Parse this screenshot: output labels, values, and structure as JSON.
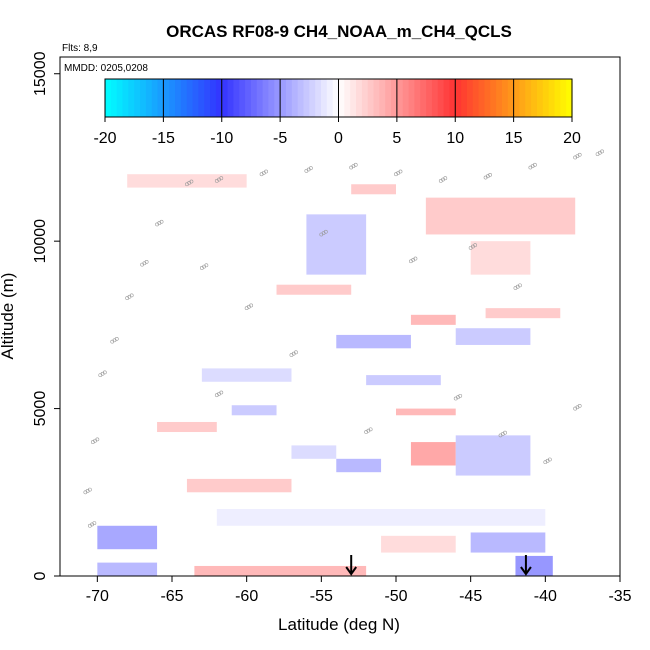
{
  "chart_data": {
    "type": "heatmap",
    "title": "ORCAS RF08-9 CH4_NOAA_m_CH4_QCLS",
    "notes": {
      "flights": "Flts: 8,9",
      "dates": "MMDD: 0205,0208"
    },
    "xlabel": "Latitude (deg N)",
    "ylabel": "Altitude (m)",
    "xlim": [
      -72.5,
      -35
    ],
    "ylim": [
      0,
      15500
    ],
    "x_ticks": [
      -70,
      -65,
      -60,
      -55,
      -50,
      -45,
      -40,
      -35
    ],
    "y_ticks": [
      0,
      5000,
      10000,
      15000
    ],
    "colorbar": {
      "range": [
        -20,
        20
      ],
      "ticks": [
        -20,
        -15,
        -10,
        -5,
        0,
        5,
        10,
        15,
        20
      ],
      "colors": [
        "#00ffff",
        "#3333ff",
        "#ffffff",
        "#ff3333",
        "#ffff00"
      ]
    },
    "arrows_latitude": [
      -53,
      -41.3
    ],
    "grid": false,
    "bands": [
      {
        "lat": [
          -68,
          -60
        ],
        "alt": [
          11600,
          12000
        ],
        "v": 2
      },
      {
        "lat": [
          -53,
          -50
        ],
        "alt": [
          11400,
          11700
        ],
        "v": 3
      },
      {
        "lat": [
          -48,
          -38
        ],
        "alt": [
          10200,
          11300
        ],
        "v": 3
      },
      {
        "lat": [
          -45,
          -41
        ],
        "alt": [
          9000,
          10000
        ],
        "v": 2
      },
      {
        "lat": [
          -58,
          -53
        ],
        "alt": [
          8400,
          8700
        ],
        "v": 3
      },
      {
        "lat": [
          -56,
          -52
        ],
        "alt": [
          9000,
          10800
        ],
        "v": -3
      },
      {
        "lat": [
          -49,
          -46
        ],
        "alt": [
          7500,
          7800
        ],
        "v": 4
      },
      {
        "lat": [
          -44,
          -39
        ],
        "alt": [
          7700,
          8000
        ],
        "v": 3
      },
      {
        "lat": [
          -54,
          -49
        ],
        "alt": [
          6800,
          7200
        ],
        "v": -4
      },
      {
        "lat": [
          -46,
          -41
        ],
        "alt": [
          6900,
          7400
        ],
        "v": -3
      },
      {
        "lat": [
          -63,
          -57
        ],
        "alt": [
          5800,
          6200
        ],
        "v": -2
      },
      {
        "lat": [
          -52,
          -47
        ],
        "alt": [
          5700,
          6000
        ],
        "v": -3
      },
      {
        "lat": [
          -50,
          -46
        ],
        "alt": [
          4800,
          5000
        ],
        "v": 4
      },
      {
        "lat": [
          -61,
          -58
        ],
        "alt": [
          4800,
          5100
        ],
        "v": -3
      },
      {
        "lat": [
          -66,
          -62
        ],
        "alt": [
          4300,
          4600
        ],
        "v": 3
      },
      {
        "lat": [
          -57,
          -54
        ],
        "alt": [
          3500,
          3900
        ],
        "v": -2
      },
      {
        "lat": [
          -49,
          -46
        ],
        "alt": [
          3300,
          4000
        ],
        "v": 5
      },
      {
        "lat": [
          -54,
          -51
        ],
        "alt": [
          3100,
          3500
        ],
        "v": -4
      },
      {
        "lat": [
          -64,
          -57
        ],
        "alt": [
          2500,
          2900
        ],
        "v": 3
      },
      {
        "lat": [
          -46,
          -41
        ],
        "alt": [
          3000,
          4200
        ],
        "v": -3
      },
      {
        "lat": [
          -62,
          -40
        ],
        "alt": [
          1500,
          2000
        ],
        "v": -1
      },
      {
        "lat": [
          -70,
          -66
        ],
        "alt": [
          800,
          1500
        ],
        "v": -5
      },
      {
        "lat": [
          -45,
          -40
        ],
        "alt": [
          700,
          1300
        ],
        "v": -4
      },
      {
        "lat": [
          -51,
          -46
        ],
        "alt": [
          700,
          1200
        ],
        "v": 2
      },
      {
        "lat": [
          -63.5,
          -52
        ],
        "alt": [
          0,
          300
        ],
        "v": 4
      },
      {
        "lat": [
          -42,
          -39.5
        ],
        "alt": [
          0,
          600
        ],
        "v": -6
      },
      {
        "lat": [
          -70,
          -66
        ],
        "alt": [
          0,
          400
        ],
        "v": -4
      }
    ]
  }
}
